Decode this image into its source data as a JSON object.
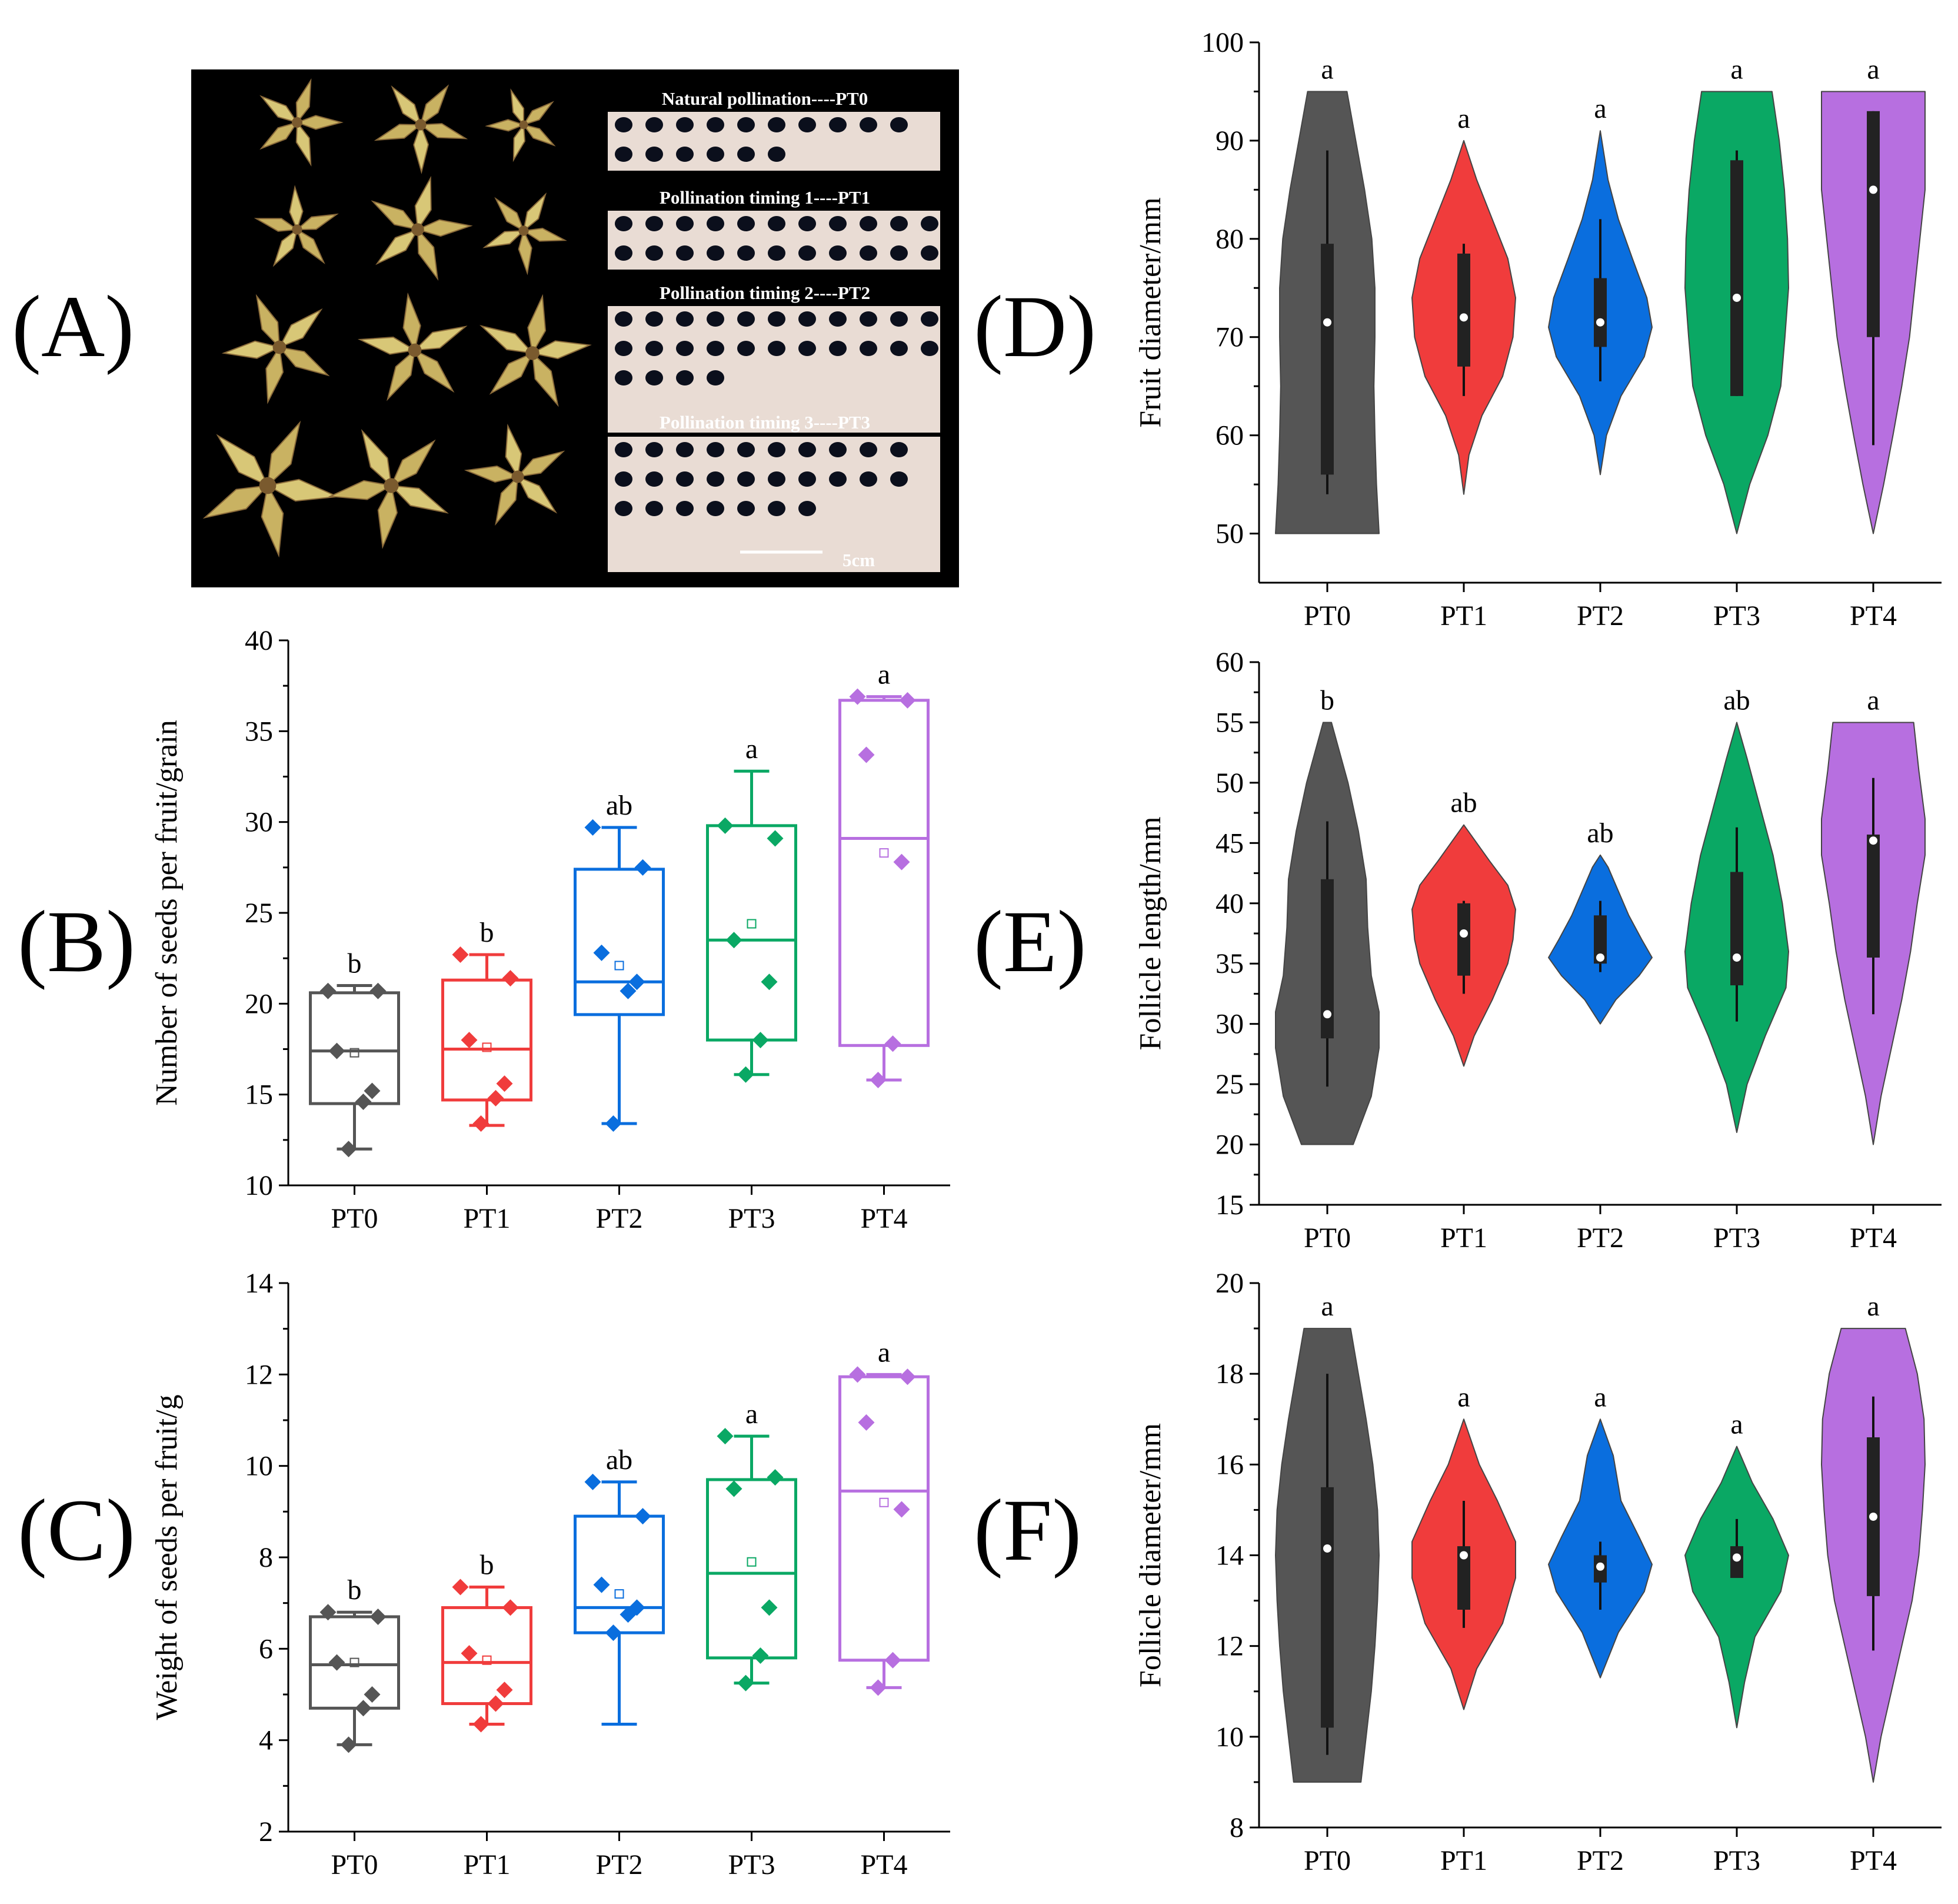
{
  "panel_labels": {
    "A": "(A)",
    "B": "(B)",
    "C": "(C)",
    "D": "(D)",
    "E": "(E)",
    "F": "(F)"
  },
  "photo": {
    "rows": [
      "Natural pollination----PT0",
      "Pollination timing 1----PT1",
      "Pollination timing 2----PT2",
      "Pollination timing 3----PT3"
    ],
    "scale_label": "5cm"
  },
  "colors": {
    "PT0": "#555555",
    "PT1": "#f03c3c",
    "PT2": "#0a6ede",
    "PT3": "#0aa864",
    "PT4": "#b76fe0",
    "axis": "#000000"
  },
  "chart_data": [
    {
      "id": "B",
      "type": "box",
      "ylabel": "Number of seeds per fruit/grain",
      "categories": [
        "PT0",
        "PT1",
        "PT2",
        "PT3",
        "PT4"
      ],
      "ylim": [
        10,
        40
      ],
      "yticks": [
        10,
        15,
        20,
        25,
        30,
        35,
        40
      ],
      "boxes": [
        {
          "name": "PT0",
          "q1": 14.5,
          "median": 17.4,
          "q3": 20.6,
          "whisker_low": 12.0,
          "whisker_high": 21.0,
          "mean": 17.3,
          "points": [
            20.7,
            20.7,
            17.4,
            15.2,
            14.6,
            12.0
          ],
          "letter": "b"
        },
        {
          "name": "PT1",
          "q1": 14.7,
          "median": 17.5,
          "q3": 21.3,
          "whisker_low": 13.3,
          "whisker_high": 22.7,
          "mean": 17.6,
          "points": [
            22.7,
            21.4,
            18.0,
            15.6,
            14.8,
            13.4
          ],
          "letter": "b"
        },
        {
          "name": "PT2",
          "q1": 19.4,
          "median": 21.2,
          "q3": 27.4,
          "whisker_low": 13.4,
          "whisker_high": 29.7,
          "mean": 22.1,
          "points": [
            29.7,
            27.5,
            22.8,
            21.2,
            20.7,
            13.4
          ],
          "letter": "ab"
        },
        {
          "name": "PT3",
          "q1": 18.0,
          "median": 23.5,
          "q3": 29.8,
          "whisker_low": 16.1,
          "whisker_high": 32.8,
          "mean": 24.4,
          "points": [
            29.8,
            29.1,
            23.5,
            21.2,
            18.0,
            16.1
          ],
          "letter": "a"
        },
        {
          "name": "PT4",
          "q1": 17.7,
          "median": 29.1,
          "q3": 36.7,
          "whisker_low": 15.8,
          "whisker_high": 36.9,
          "mean": 28.3,
          "points": [
            36.9,
            36.7,
            33.7,
            27.8,
            17.8,
            15.8
          ],
          "letter": "a"
        }
      ]
    },
    {
      "id": "C",
      "type": "box",
      "ylabel": "Weight of seeds per fruit/g",
      "categories": [
        "PT0",
        "PT1",
        "PT2",
        "PT3",
        "PT4"
      ],
      "ylim": [
        2,
        14
      ],
      "yticks": [
        2,
        4,
        6,
        8,
        10,
        12,
        14
      ],
      "boxes": [
        {
          "name": "PT0",
          "q1": 4.7,
          "median": 5.65,
          "q3": 6.7,
          "whisker_low": 3.9,
          "whisker_high": 6.8,
          "mean": 5.7,
          "points": [
            6.8,
            6.7,
            5.7,
            5.0,
            4.7,
            3.9
          ],
          "letter": "b"
        },
        {
          "name": "PT1",
          "q1": 4.8,
          "median": 5.7,
          "q3": 6.9,
          "whisker_low": 4.35,
          "whisker_high": 7.35,
          "mean": 5.75,
          "points": [
            7.35,
            6.9,
            5.9,
            5.1,
            4.8,
            4.35
          ],
          "letter": "b"
        },
        {
          "name": "PT2",
          "q1": 6.35,
          "median": 6.9,
          "q3": 8.9,
          "whisker_low": 4.35,
          "whisker_high": 9.65,
          "mean": 7.2,
          "points": [
            9.65,
            8.9,
            7.4,
            6.9,
            6.75,
            6.35
          ],
          "letter": "ab"
        },
        {
          "name": "PT3",
          "q1": 5.8,
          "median": 7.65,
          "q3": 9.7,
          "whisker_low": 5.25,
          "whisker_high": 10.65,
          "mean": 7.9,
          "points": [
            10.65,
            9.75,
            9.5,
            6.9,
            5.85,
            5.25
          ],
          "letter": "a"
        },
        {
          "name": "PT4",
          "q1": 5.75,
          "median": 9.45,
          "q3": 11.95,
          "whisker_low": 5.15,
          "whisker_high": 12.0,
          "mean": 9.2,
          "points": [
            12.0,
            11.95,
            10.95,
            9.05,
            5.75,
            5.15
          ],
          "letter": "a"
        }
      ]
    },
    {
      "id": "D",
      "type": "violin",
      "ylabel": "Fruit diameter/mm",
      "categories": [
        "PT0",
        "PT1",
        "PT2",
        "PT3",
        "PT4"
      ],
      "ylim": [
        45,
        100
      ],
      "yticks": [
        50,
        60,
        70,
        80,
        90,
        100
      ],
      "violins": [
        {
          "name": "PT0",
          "min": 50,
          "max": 95,
          "q1": 56,
          "q3": 79.5,
          "median": 71.5,
          "whisker_low": 54,
          "whisker_high": 89,
          "letter": "a",
          "profile": [
            [
              50,
              1.0
            ],
            [
              55,
              0.95
            ],
            [
              60,
              0.92
            ],
            [
              65,
              0.9
            ],
            [
              70,
              0.92
            ],
            [
              75,
              0.92
            ],
            [
              80,
              0.86
            ],
            [
              85,
              0.72
            ],
            [
              90,
              0.55
            ],
            [
              95,
              0.38
            ]
          ]
        },
        {
          "name": "PT1",
          "min": 54,
          "max": 90,
          "q1": 67,
          "q3": 78.5,
          "median": 72,
          "whisker_low": 64,
          "whisker_high": 79.5,
          "letter": "a",
          "profile": [
            [
              54,
              0.0
            ],
            [
              58,
              0.1
            ],
            [
              62,
              0.35
            ],
            [
              66,
              0.75
            ],
            [
              70,
              0.95
            ],
            [
              74,
              1.0
            ],
            [
              78,
              0.85
            ],
            [
              82,
              0.55
            ],
            [
              86,
              0.25
            ],
            [
              90,
              0.0
            ]
          ]
        },
        {
          "name": "PT2",
          "min": 56,
          "max": 91,
          "q1": 69,
          "q3": 76,
          "median": 71.5,
          "whisker_low": 65.5,
          "whisker_high": 82,
          "letter": "a",
          "profile": [
            [
              56,
              0.0
            ],
            [
              60,
              0.12
            ],
            [
              64,
              0.4
            ],
            [
              68,
              0.85
            ],
            [
              71,
              1.0
            ],
            [
              74,
              0.9
            ],
            [
              78,
              0.62
            ],
            [
              82,
              0.35
            ],
            [
              86,
              0.15
            ],
            [
              91,
              0.0
            ]
          ]
        },
        {
          "name": "PT3",
          "min": 50,
          "max": 95,
          "q1": 64,
          "q3": 88,
          "median": 74,
          "whisker_low": 64,
          "whisker_high": 89,
          "letter": "a",
          "profile": [
            [
              50,
              0.0
            ],
            [
              55,
              0.25
            ],
            [
              60,
              0.6
            ],
            [
              65,
              0.85
            ],
            [
              70,
              0.93
            ],
            [
              75,
              1.0
            ],
            [
              80,
              0.98
            ],
            [
              85,
              0.92
            ],
            [
              90,
              0.82
            ],
            [
              95,
              0.68
            ]
          ]
        },
        {
          "name": "PT4",
          "min": 50,
          "max": 95,
          "q1": 70,
          "q3": 93,
          "median": 85,
          "whisker_low": 59,
          "whisker_high": 93,
          "letter": "a",
          "profile": [
            [
              50,
              0.0
            ],
            [
              55,
              0.2
            ],
            [
              60,
              0.38
            ],
            [
              65,
              0.55
            ],
            [
              70,
              0.7
            ],
            [
              75,
              0.8
            ],
            [
              80,
              0.9
            ],
            [
              85,
              1.0
            ],
            [
              90,
              1.0
            ],
            [
              95,
              1.0
            ]
          ]
        }
      ]
    },
    {
      "id": "E",
      "type": "violin",
      "ylabel": "Follicle length/mm",
      "categories": [
        "PT0",
        "PT1",
        "PT2",
        "PT3",
        "PT4"
      ],
      "ylim": [
        15,
        60
      ],
      "yticks": [
        15,
        20,
        25,
        30,
        35,
        40,
        45,
        50,
        55,
        60
      ],
      "violins": [
        {
          "name": "PT0",
          "min": 20,
          "max": 55,
          "q1": 28.8,
          "q3": 42.0,
          "median": 30.8,
          "whisker_low": 24.8,
          "whisker_high": 46.8,
          "letter": "b",
          "profile": [
            [
              20,
              0.5
            ],
            [
              24,
              0.85
            ],
            [
              28,
              1.0
            ],
            [
              31,
              1.0
            ],
            [
              34,
              0.85
            ],
            [
              38,
              0.78
            ],
            [
              42,
              0.75
            ],
            [
              46,
              0.6
            ],
            [
              50,
              0.4
            ],
            [
              55,
              0.08
            ]
          ]
        },
        {
          "name": "PT1",
          "min": 26.5,
          "max": 46.5,
          "q1": 34.0,
          "q3": 40.0,
          "median": 37.5,
          "whisker_low": 32.5,
          "whisker_high": 40.2,
          "letter": "ab",
          "profile": [
            [
              26.5,
              0.0
            ],
            [
              29,
              0.2
            ],
            [
              32,
              0.55
            ],
            [
              35,
              0.85
            ],
            [
              37,
              0.95
            ],
            [
              39.5,
              1.0
            ],
            [
              41.5,
              0.85
            ],
            [
              43.5,
              0.5
            ],
            [
              46.5,
              0.0
            ]
          ]
        },
        {
          "name": "PT2",
          "min": 30,
          "max": 44,
          "q1": 35.0,
          "q3": 39.0,
          "median": 35.5,
          "whisker_low": 34.3,
          "whisker_high": 40.2,
          "letter": "ab",
          "profile": [
            [
              30,
              0.0
            ],
            [
              32,
              0.3
            ],
            [
              34,
              0.75
            ],
            [
              35.5,
              1.0
            ],
            [
              37,
              0.8
            ],
            [
              39,
              0.55
            ],
            [
              41,
              0.35
            ],
            [
              43,
              0.15
            ],
            [
              44,
              0.0
            ]
          ]
        },
        {
          "name": "PT3",
          "min": 21,
          "max": 55,
          "q1": 33.2,
          "q3": 42.6,
          "median": 35.5,
          "whisker_low": 30.2,
          "whisker_high": 46.3,
          "letter": "ab",
          "profile": [
            [
              21,
              0.0
            ],
            [
              25,
              0.2
            ],
            [
              29,
              0.55
            ],
            [
              33,
              0.95
            ],
            [
              36,
              1.0
            ],
            [
              40,
              0.88
            ],
            [
              44,
              0.7
            ],
            [
              48,
              0.45
            ],
            [
              52,
              0.2
            ],
            [
              55,
              0.0
            ]
          ]
        },
        {
          "name": "PT4",
          "min": 20,
          "max": 55,
          "q1": 35.5,
          "q3": 45.7,
          "median": 45.2,
          "whisker_low": 30.8,
          "whisker_high": 50.4,
          "letter": "a",
          "profile": [
            [
              20,
              0.0
            ],
            [
              24,
              0.15
            ],
            [
              28,
              0.35
            ],
            [
              32,
              0.55
            ],
            [
              36,
              0.72
            ],
            [
              40,
              0.85
            ],
            [
              44,
              1.0
            ],
            [
              47,
              1.0
            ],
            [
              51,
              0.88
            ],
            [
              55,
              0.78
            ]
          ]
        }
      ]
    },
    {
      "id": "F",
      "type": "violin",
      "ylabel": "Follicle diameter/mm",
      "categories": [
        "PT0",
        "PT1",
        "PT2",
        "PT3",
        "PT4"
      ],
      "ylim": [
        8,
        20
      ],
      "yticks": [
        8,
        10,
        12,
        14,
        16,
        18,
        20
      ],
      "violins": [
        {
          "name": "PT0",
          "min": 9,
          "max": 19,
          "q1": 10.2,
          "q3": 15.5,
          "median": 14.15,
          "whisker_low": 9.6,
          "whisker_high": 18.0,
          "letter": "a",
          "profile": [
            [
              9,
              0.65
            ],
            [
              10,
              0.75
            ],
            [
              11,
              0.85
            ],
            [
              12,
              0.92
            ],
            [
              13,
              0.97
            ],
            [
              14,
              1.0
            ],
            [
              15,
              0.97
            ],
            [
              16,
              0.88
            ],
            [
              17,
              0.75
            ],
            [
              18,
              0.6
            ],
            [
              19,
              0.45
            ]
          ]
        },
        {
          "name": "PT1",
          "min": 10.6,
          "max": 17,
          "q1": 12.8,
          "q3": 14.2,
          "median": 14.0,
          "whisker_low": 12.4,
          "whisker_high": 15.2,
          "letter": "a",
          "profile": [
            [
              10.6,
              0.0
            ],
            [
              11.5,
              0.25
            ],
            [
              12.5,
              0.75
            ],
            [
              13.5,
              1.0
            ],
            [
              14.3,
              1.0
            ],
            [
              15.2,
              0.65
            ],
            [
              16,
              0.3
            ],
            [
              17,
              0.0
            ]
          ]
        },
        {
          "name": "PT2",
          "min": 11.3,
          "max": 17,
          "q1": 13.4,
          "q3": 14.0,
          "median": 13.75,
          "whisker_low": 12.8,
          "whisker_high": 14.3,
          "letter": "a",
          "profile": [
            [
              11.3,
              0.0
            ],
            [
              12.3,
              0.35
            ],
            [
              13.2,
              0.85
            ],
            [
              13.8,
              1.0
            ],
            [
              14.4,
              0.75
            ],
            [
              15.2,
              0.4
            ],
            [
              16.2,
              0.25
            ],
            [
              17,
              0.0
            ]
          ]
        },
        {
          "name": "PT3",
          "min": 10.2,
          "max": 16.4,
          "q1": 13.5,
          "q3": 14.2,
          "median": 13.95,
          "whisker_low": 13.5,
          "whisker_high": 14.8,
          "letter": "a",
          "profile": [
            [
              10.2,
              0.0
            ],
            [
              11.2,
              0.15
            ],
            [
              12.2,
              0.35
            ],
            [
              13.2,
              0.85
            ],
            [
              14,
              1.0
            ],
            [
              14.8,
              0.7
            ],
            [
              15.6,
              0.3
            ],
            [
              16.4,
              0.0
            ]
          ]
        },
        {
          "name": "PT4",
          "min": 9,
          "max": 19,
          "q1": 13.1,
          "q3": 16.6,
          "median": 14.85,
          "whisker_low": 11.9,
          "whisker_high": 17.5,
          "letter": "a",
          "profile": [
            [
              9,
              0.0
            ],
            [
              10,
              0.15
            ],
            [
              11,
              0.35
            ],
            [
              12,
              0.55
            ],
            [
              13,
              0.75
            ],
            [
              14,
              0.88
            ],
            [
              15,
              0.95
            ],
            [
              16,
              1.0
            ],
            [
              17,
              0.98
            ],
            [
              18,
              0.85
            ],
            [
              19,
              0.62
            ]
          ]
        }
      ]
    }
  ]
}
